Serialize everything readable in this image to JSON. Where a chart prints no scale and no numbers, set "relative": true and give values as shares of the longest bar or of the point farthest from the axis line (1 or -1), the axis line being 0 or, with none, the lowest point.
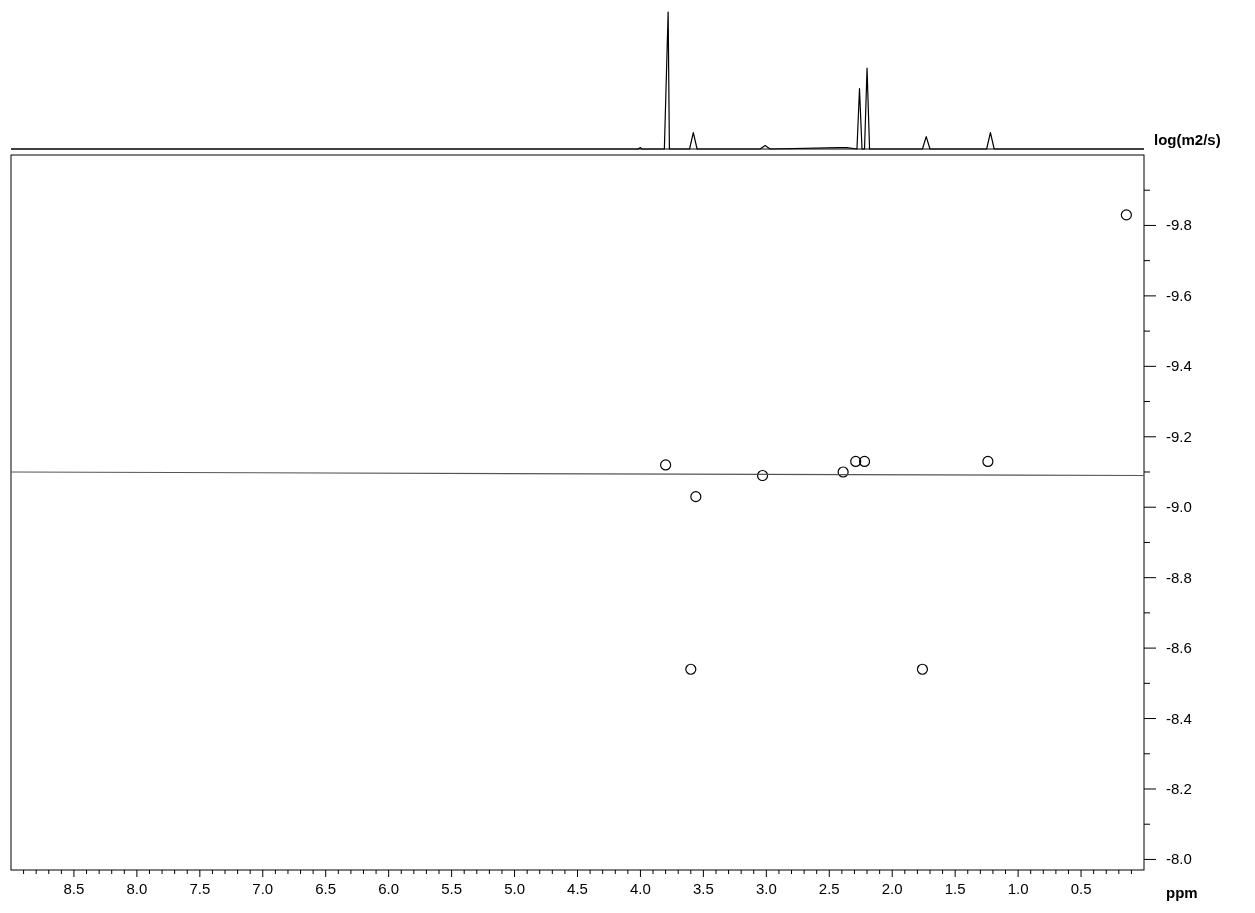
{
  "chart_data": [
    {
      "type": "line",
      "relative": true,
      "xlim": [
        9.0,
        0.0
      ],
      "series": [
        {
          "color": "#000000",
          "x": [
            9.0,
            4.02,
            4.0,
            3.99,
            3.81,
            3.78,
            3.77,
            3.61,
            3.58,
            3.55,
            3.05,
            3.01,
            2.97,
            2.42,
            2.36,
            2.28,
            2.26,
            2.24,
            2.22,
            2.2,
            2.18,
            1.76,
            1.73,
            1.7,
            1.25,
            1.22,
            1.19,
            0.0
          ],
          "values": [
            0,
            0,
            0.01,
            0,
            0,
            1.0,
            0,
            0,
            0.12,
            0,
            0,
            0.025,
            0,
            0.01,
            0.01,
            0,
            0.44,
            0,
            0,
            0.59,
            0,
            0,
            0.09,
            0,
            0,
            0.12,
            0,
            0
          ]
        }
      ]
    },
    {
      "type": "scatter",
      "xlabel": "ppm",
      "ylabel": "log(m2/s)",
      "xlim": [
        9.0,
        0.0
      ],
      "ylim": [
        -7.97,
        -10.0
      ],
      "marker": "circle",
      "xticks": [
        {
          "value": 8.9,
          "label": null
        },
        {
          "value": 8.8,
          "label": null
        },
        {
          "value": 8.7,
          "label": null
        },
        {
          "value": 8.6,
          "label": null
        },
        {
          "value": 8.5,
          "label": "8.5"
        },
        {
          "value": 8.4,
          "label": null
        },
        {
          "value": 8.3,
          "label": null
        },
        {
          "value": 8.2,
          "label": null
        },
        {
          "value": 8.1,
          "label": null
        },
        {
          "value": 8.0,
          "label": "8.0"
        },
        {
          "value": 7.9,
          "label": null
        },
        {
          "value": 7.8,
          "label": null
        },
        {
          "value": 7.7,
          "label": null
        },
        {
          "value": 7.6,
          "label": null
        },
        {
          "value": 7.5,
          "label": "7.5"
        },
        {
          "value": 7.4,
          "label": null
        },
        {
          "value": 7.3,
          "label": null
        },
        {
          "value": 7.2,
          "label": null
        },
        {
          "value": 7.1,
          "label": null
        },
        {
          "value": 7.0,
          "label": "7.0"
        },
        {
          "value": 6.9,
          "label": null
        },
        {
          "value": 6.8,
          "label": null
        },
        {
          "value": 6.7,
          "label": null
        },
        {
          "value": 6.6,
          "label": null
        },
        {
          "value": 6.5,
          "label": "6.5"
        },
        {
          "value": 6.4,
          "label": null
        },
        {
          "value": 6.3,
          "label": null
        },
        {
          "value": 6.2,
          "label": null
        },
        {
          "value": 6.1,
          "label": null
        },
        {
          "value": 6.0,
          "label": "6.0"
        },
        {
          "value": 5.9,
          "label": null
        },
        {
          "value": 5.8,
          "label": null
        },
        {
          "value": 5.7,
          "label": null
        },
        {
          "value": 5.6,
          "label": null
        },
        {
          "value": 5.5,
          "label": "5.5"
        },
        {
          "value": 5.4,
          "label": null
        },
        {
          "value": 5.3,
          "label": null
        },
        {
          "value": 5.2,
          "label": null
        },
        {
          "value": 5.1,
          "label": null
        },
        {
          "value": 5.0,
          "label": "5.0"
        },
        {
          "value": 4.9,
          "label": null
        },
        {
          "value": 4.8,
          "label": null
        },
        {
          "value": 4.7,
          "label": null
        },
        {
          "value": 4.6,
          "label": null
        },
        {
          "value": 4.5,
          "label": "4.5"
        },
        {
          "value": 4.4,
          "label": null
        },
        {
          "value": 4.3,
          "label": null
        },
        {
          "value": 4.2,
          "label": null
        },
        {
          "value": 4.1,
          "label": null
        },
        {
          "value": 4.0,
          "label": "4.0"
        },
        {
          "value": 3.9,
          "label": null
        },
        {
          "value": 3.8,
          "label": null
        },
        {
          "value": 3.7,
          "label": null
        },
        {
          "value": 3.6,
          "label": null
        },
        {
          "value": 3.5,
          "label": "3.5"
        },
        {
          "value": 3.4,
          "label": null
        },
        {
          "value": 3.3,
          "label": null
        },
        {
          "value": 3.2,
          "label": null
        },
        {
          "value": 3.1,
          "label": null
        },
        {
          "value": 3.0,
          "label": "3.0"
        },
        {
          "value": 2.9,
          "label": null
        },
        {
          "value": 2.8,
          "label": null
        },
        {
          "value": 2.7,
          "label": null
        },
        {
          "value": 2.6,
          "label": null
        },
        {
          "value": 2.5,
          "label": "2.5"
        },
        {
          "value": 2.4,
          "label": null
        },
        {
          "value": 2.3,
          "label": null
        },
        {
          "value": 2.2,
          "label": null
        },
        {
          "value": 2.1,
          "label": null
        },
        {
          "value": 2.0,
          "label": "2.0"
        },
        {
          "value": 1.9,
          "label": null
        },
        {
          "value": 1.8,
          "label": null
        },
        {
          "value": 1.7,
          "label": null
        },
        {
          "value": 1.6,
          "label": null
        },
        {
          "value": 1.5,
          "label": "1.5"
        },
        {
          "value": 1.4,
          "label": null
        },
        {
          "value": 1.3,
          "label": null
        },
        {
          "value": 1.2,
          "label": null
        },
        {
          "value": 1.1,
          "label": null
        },
        {
          "value": 1.0,
          "label": "1.0"
        },
        {
          "value": 0.9,
          "label": null
        },
        {
          "value": 0.8,
          "label": null
        },
        {
          "value": 0.7,
          "label": null
        },
        {
          "value": 0.6,
          "label": null
        },
        {
          "value": 0.5,
          "label": "0.5"
        },
        {
          "value": 0.4,
          "label": null
        },
        {
          "value": 0.3,
          "label": null
        },
        {
          "value": 0.2,
          "label": null
        },
        {
          "value": 0.1,
          "label": null
        }
      ],
      "yticks": [
        {
          "value": -8.0,
          "label": "-8.0"
        },
        {
          "value": -8.1,
          "label": null
        },
        {
          "value": -8.2,
          "label": "-8.2"
        },
        {
          "value": -8.3,
          "label": null
        },
        {
          "value": -8.4,
          "label": "-8.4"
        },
        {
          "value": -8.5,
          "label": null
        },
        {
          "value": -8.6,
          "label": "-8.6"
        },
        {
          "value": -8.7,
          "label": null
        },
        {
          "value": -8.8,
          "label": "-8.8"
        },
        {
          "value": -8.9,
          "label": null
        },
        {
          "value": -9.0,
          "label": "-9.0"
        },
        {
          "value": -9.1,
          "label": null
        },
        {
          "value": -9.2,
          "label": "-9.2"
        },
        {
          "value": -9.3,
          "label": null
        },
        {
          "value": -9.4,
          "label": "-9.4"
        },
        {
          "value": -9.5,
          "label": null
        },
        {
          "value": -9.6,
          "label": "-9.6"
        },
        {
          "value": -9.7,
          "label": null
        },
        {
          "value": -9.8,
          "label": "-9.8"
        },
        {
          "value": -9.9,
          "label": null
        }
      ],
      "series": [
        {
          "color": "#000000",
          "x": [
            3.8,
            3.03,
            2.39,
            2.29,
            2.22,
            1.24,
            3.56,
            3.6,
            1.76,
            0.14
          ],
          "values": [
            -9.12,
            -9.09,
            -9.1,
            -9.13,
            -9.13,
            -9.13,
            -9.03,
            -8.54,
            -8.54,
            -9.83
          ]
        },
        {
          "type": "line",
          "marker": "none",
          "color": "#555555",
          "x": [
            9.0,
            0.0
          ],
          "values": [
            -9.1,
            -9.09
          ]
        }
      ]
    }
  ]
}
